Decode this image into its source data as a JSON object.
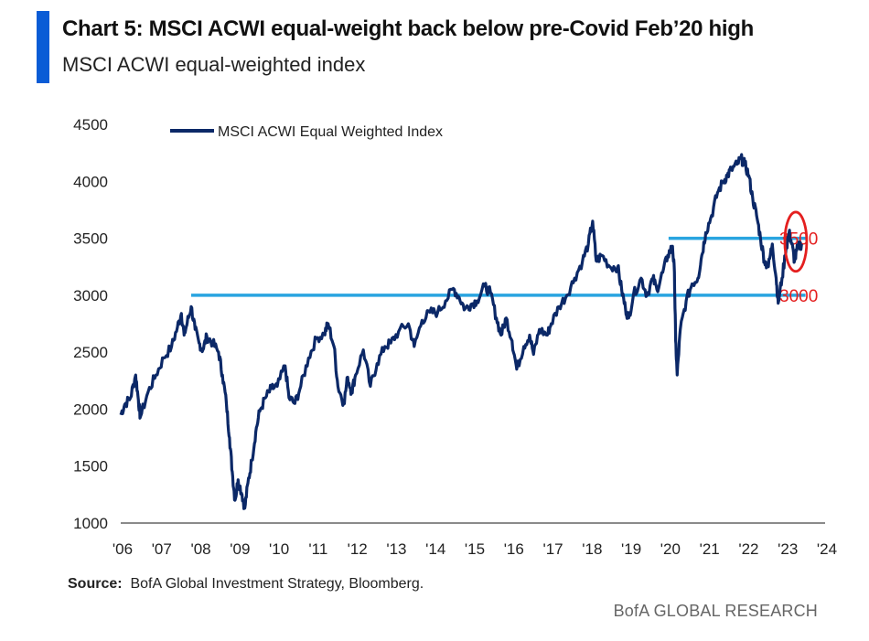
{
  "header": {
    "title": "Chart 5: MSCI ACWI equal-weight back below pre-Covid Feb’20 high",
    "subtitle": "MSCI ACWI equal-weighted index"
  },
  "footer": {
    "source_label": "Source:",
    "source_text": "BofA Global Investment Strategy, Bloomberg.",
    "brand": "BofA GLOBAL RESEARCH"
  },
  "colors": {
    "series": "#0b2867",
    "reference_line": "#29a4e0",
    "annotation": "#e41f1f",
    "axis": "#444444"
  },
  "chart_data": {
    "type": "line",
    "legend": {
      "position": "top-left",
      "entries": [
        "MSCI ACWI Equal Weighted Index"
      ]
    },
    "x_tick_labels": [
      "'06",
      "'07",
      "'08",
      "'09",
      "'10",
      "'11",
      "'12",
      "'13",
      "'14",
      "'15",
      "'16",
      "'17",
      "'18",
      "'19",
      "'20",
      "'21",
      "'22",
      "'23",
      "'24"
    ],
    "xlim": [
      2006.0,
      2024.0
    ],
    "ylim": [
      1000,
      4500
    ],
    "y_ticks": [
      1000,
      1500,
      2000,
      2500,
      3000,
      3500,
      4000,
      4500
    ],
    "series": [
      {
        "name": "MSCI ACWI Equal Weighted Index",
        "points": [
          [
            2006.0,
            1950
          ],
          [
            2006.1,
            2040
          ],
          [
            2006.25,
            2100
          ],
          [
            2006.38,
            2300
          ],
          [
            2006.45,
            2080
          ],
          [
            2006.5,
            1930
          ],
          [
            2006.7,
            2150
          ],
          [
            2006.9,
            2300
          ],
          [
            2007.1,
            2450
          ],
          [
            2007.3,
            2550
          ],
          [
            2007.45,
            2720
          ],
          [
            2007.55,
            2840
          ],
          [
            2007.62,
            2650
          ],
          [
            2007.7,
            2760
          ],
          [
            2007.8,
            2900
          ],
          [
            2007.9,
            2700
          ],
          [
            2008.0,
            2580
          ],
          [
            2008.1,
            2520
          ],
          [
            2008.2,
            2640
          ],
          [
            2008.35,
            2580
          ],
          [
            2008.5,
            2500
          ],
          [
            2008.6,
            2300
          ],
          [
            2008.7,
            2050
          ],
          [
            2008.78,
            1750
          ],
          [
            2008.85,
            1450
          ],
          [
            2008.92,
            1200
          ],
          [
            2009.0,
            1380
          ],
          [
            2009.1,
            1250
          ],
          [
            2009.17,
            1130
          ],
          [
            2009.25,
            1350
          ],
          [
            2009.35,
            1550
          ],
          [
            2009.45,
            1800
          ],
          [
            2009.55,
            1980
          ],
          [
            2009.7,
            2100
          ],
          [
            2009.85,
            2180
          ],
          [
            2010.0,
            2200
          ],
          [
            2010.2,
            2380
          ],
          [
            2010.3,
            2100
          ],
          [
            2010.45,
            2050
          ],
          [
            2010.6,
            2200
          ],
          [
            2010.8,
            2450
          ],
          [
            2011.0,
            2620
          ],
          [
            2011.2,
            2660
          ],
          [
            2011.3,
            2750
          ],
          [
            2011.45,
            2550
          ],
          [
            2011.55,
            2200
          ],
          [
            2011.7,
            2050
          ],
          [
            2011.8,
            2280
          ],
          [
            2011.9,
            2150
          ],
          [
            2012.0,
            2300
          ],
          [
            2012.2,
            2520
          ],
          [
            2012.38,
            2200
          ],
          [
            2012.55,
            2400
          ],
          [
            2012.75,
            2550
          ],
          [
            2012.9,
            2580
          ],
          [
            2013.1,
            2680
          ],
          [
            2013.35,
            2750
          ],
          [
            2013.5,
            2550
          ],
          [
            2013.7,
            2780
          ],
          [
            2013.9,
            2850
          ],
          [
            2014.1,
            2850
          ],
          [
            2014.3,
            2950
          ],
          [
            2014.5,
            3060
          ],
          [
            2014.65,
            2980
          ],
          [
            2014.8,
            2880
          ],
          [
            2014.95,
            2920
          ],
          [
            2015.1,
            2950
          ],
          [
            2015.3,
            3080
          ],
          [
            2015.45,
            3020
          ],
          [
            2015.6,
            2800
          ],
          [
            2015.72,
            2650
          ],
          [
            2015.85,
            2800
          ],
          [
            2016.0,
            2600
          ],
          [
            2016.12,
            2350
          ],
          [
            2016.3,
            2550
          ],
          [
            2016.45,
            2650
          ],
          [
            2016.55,
            2480
          ],
          [
            2016.7,
            2700
          ],
          [
            2016.9,
            2650
          ],
          [
            2017.0,
            2750
          ],
          [
            2017.2,
            2900
          ],
          [
            2017.4,
            3000
          ],
          [
            2017.6,
            3150
          ],
          [
            2017.8,
            3300
          ],
          [
            2017.95,
            3450
          ],
          [
            2018.06,
            3650
          ],
          [
            2018.15,
            3300
          ],
          [
            2018.3,
            3350
          ],
          [
            2018.5,
            3250
          ],
          [
            2018.7,
            3250
          ],
          [
            2018.8,
            3050
          ],
          [
            2018.9,
            2880
          ],
          [
            2018.98,
            2800
          ],
          [
            2019.1,
            3000
          ],
          [
            2019.3,
            3150
          ],
          [
            2019.45,
            3000
          ],
          [
            2019.6,
            3150
          ],
          [
            2019.7,
            3050
          ],
          [
            2019.85,
            3200
          ],
          [
            2019.98,
            3350
          ],
          [
            2020.1,
            3430
          ],
          [
            2020.15,
            3200
          ],
          [
            2020.18,
            2600
          ],
          [
            2020.22,
            2300
          ],
          [
            2020.3,
            2700
          ],
          [
            2020.45,
            2950
          ],
          [
            2020.6,
            3100
          ],
          [
            2020.75,
            3150
          ],
          [
            2020.85,
            3350
          ],
          [
            2020.95,
            3550
          ],
          [
            2021.1,
            3700
          ],
          [
            2021.25,
            3900
          ],
          [
            2021.4,
            4000
          ],
          [
            2021.5,
            4050
          ],
          [
            2021.6,
            4100
          ],
          [
            2021.75,
            4150
          ],
          [
            2021.85,
            4200
          ],
          [
            2021.95,
            4150
          ],
          [
            2022.05,
            4050
          ],
          [
            2022.15,
            3850
          ],
          [
            2022.25,
            3700
          ],
          [
            2022.35,
            3500
          ],
          [
            2022.45,
            3300
          ],
          [
            2022.55,
            3250
          ],
          [
            2022.65,
            3450
          ],
          [
            2022.75,
            3150
          ],
          [
            2022.8,
            2930
          ],
          [
            2022.9,
            3150
          ],
          [
            2023.0,
            3400
          ],
          [
            2023.08,
            3550
          ],
          [
            2023.15,
            3450
          ],
          [
            2023.22,
            3300
          ],
          [
            2023.3,
            3420
          ],
          [
            2023.4,
            3450
          ]
        ]
      }
    ],
    "reference_lines": [
      {
        "y": 3000,
        "x_range": [
          2007.8,
          2023.5
        ],
        "label": "3000"
      },
      {
        "y": 3500,
        "x_range": [
          2020.0,
          2023.5
        ],
        "label": "3500"
      }
    ],
    "annotations": [
      {
        "type": "ellipse",
        "center": [
          2023.25,
          3470
        ],
        "rx_years": 0.28,
        "ry_value": 260
      }
    ]
  }
}
